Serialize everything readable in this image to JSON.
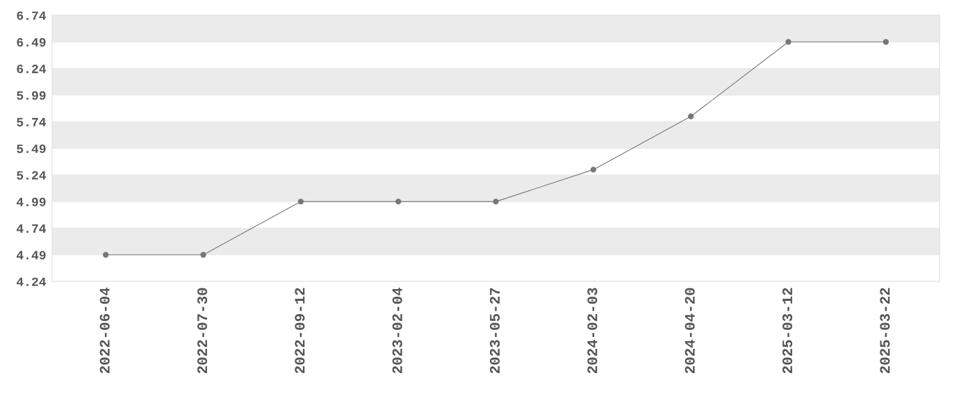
{
  "chart_data": {
    "type": "line",
    "categories": [
      "2022-06-04",
      "2022-07-30",
      "2022-09-12",
      "2023-02-04",
      "2023-05-27",
      "2024-02-03",
      "2024-04-20",
      "2025-03-12",
      "2025-03-22"
    ],
    "series": [
      {
        "color": "#777777",
        "values": [
          4.49,
          4.49,
          4.99,
          4.99,
          4.99,
          5.29,
          5.79,
          6.49,
          6.49
        ]
      }
    ],
    "ylim": [
      4.24,
      6.74
    ],
    "yticks": [
      4.24,
      4.49,
      4.74,
      4.99,
      5.24,
      5.49,
      5.74,
      5.99,
      6.24,
      6.49,
      6.74
    ],
    "grid": "y",
    "marker": "circle",
    "line_style": "solid",
    "legend": false
  }
}
